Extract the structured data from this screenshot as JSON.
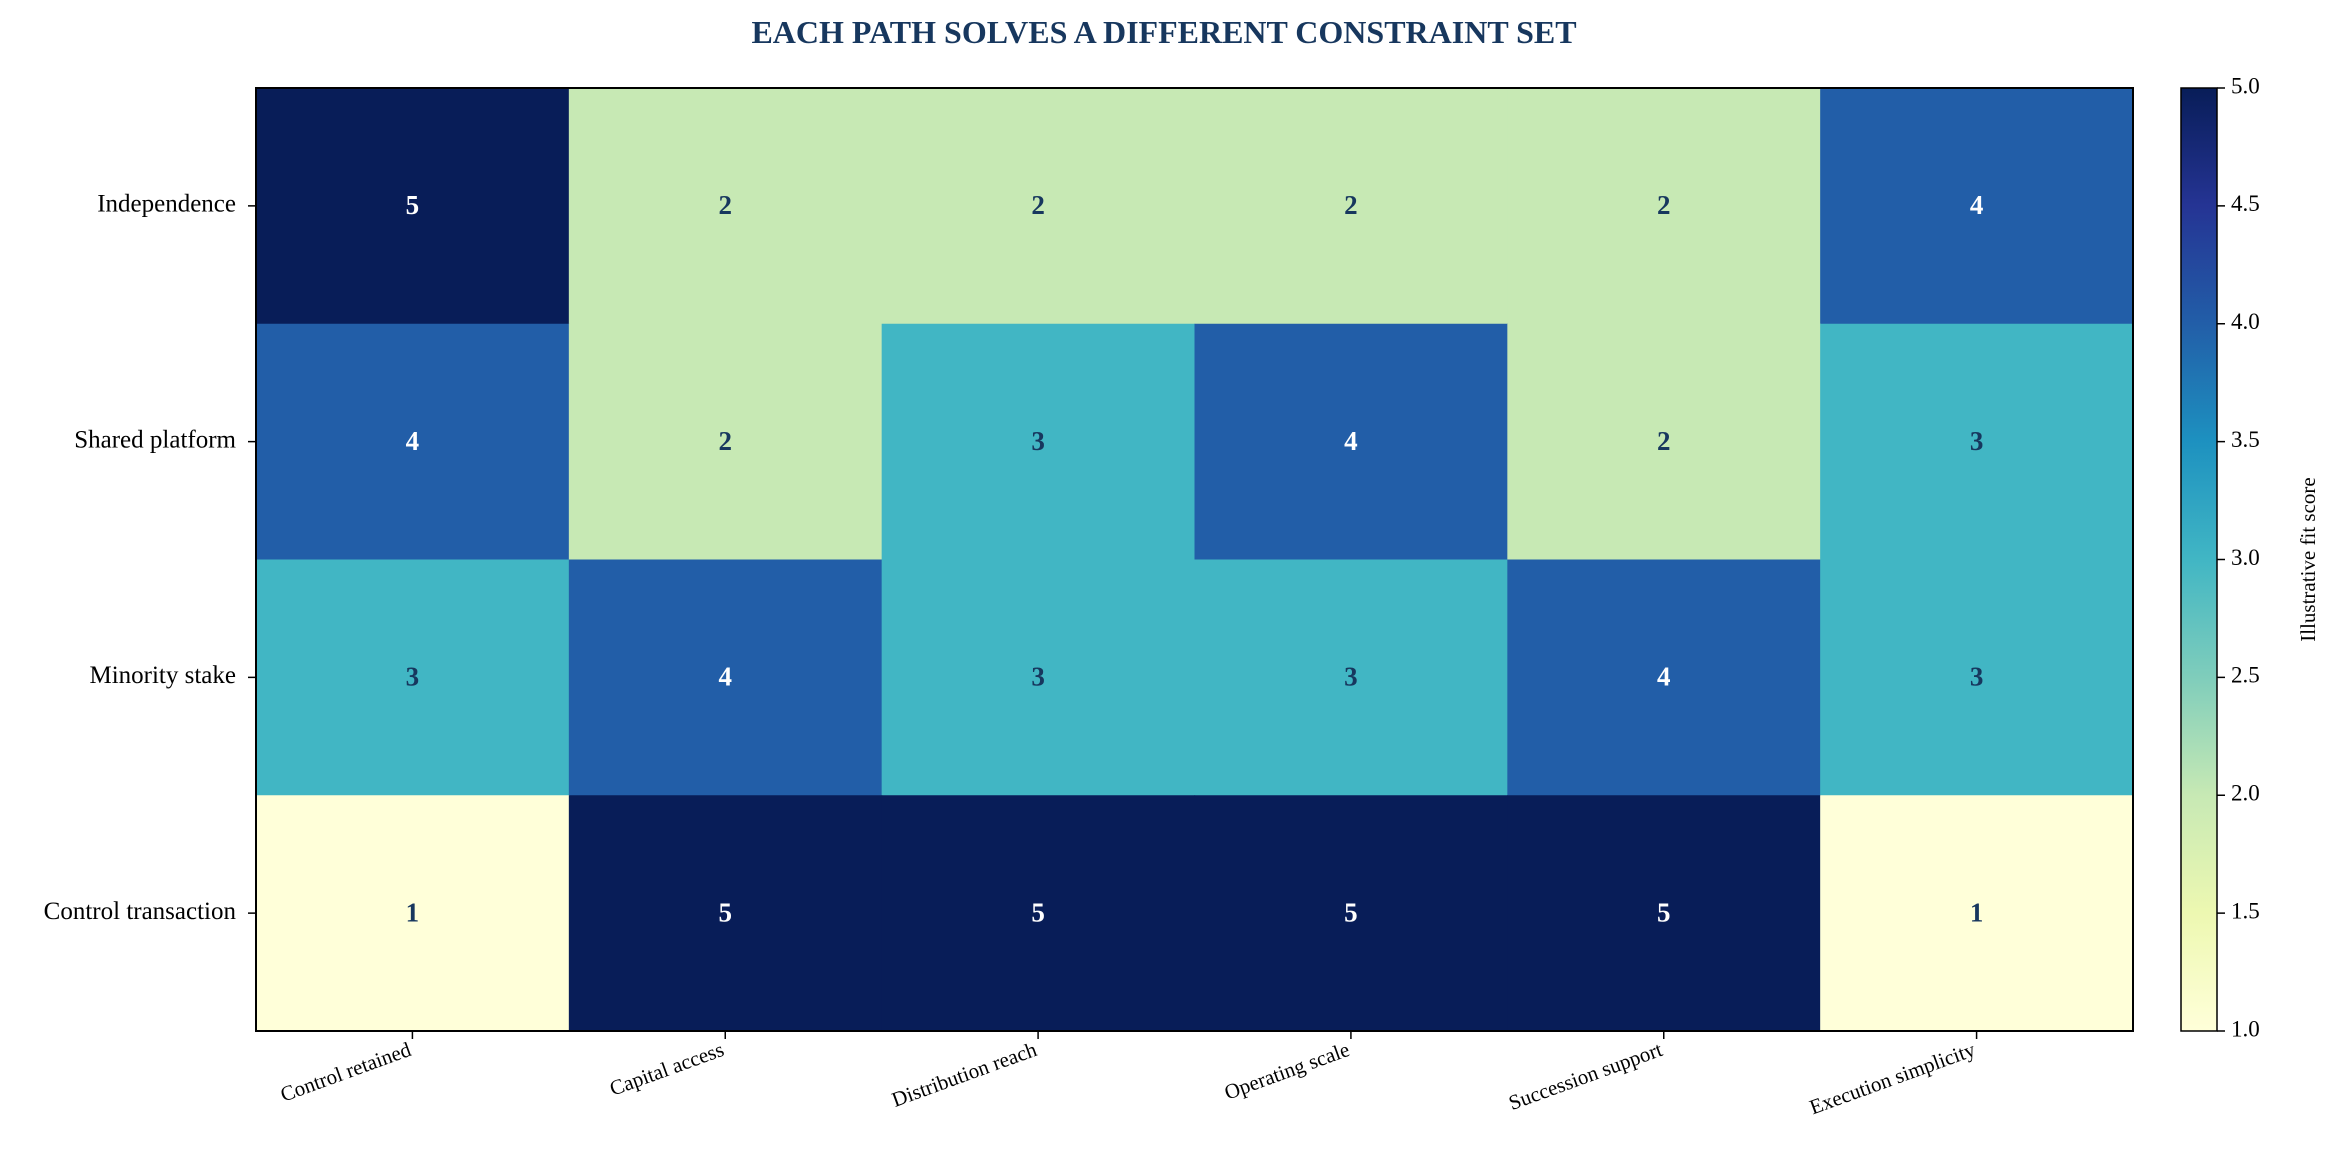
{
  "chart_data": {
    "type": "heatmap",
    "title": "EACH PATH SOLVES A DIFFERENT CONSTRAINT SET",
    "rows": [
      "Independence",
      "Shared platform",
      "Minority stake",
      "Control transaction"
    ],
    "columns": [
      "Control retained",
      "Capital access",
      "Distribution reach",
      "Operating scale",
      "Succession support",
      "Execution simplicity"
    ],
    "values": [
      [
        5,
        2,
        2,
        2,
        2,
        4
      ],
      [
        4,
        2,
        3,
        4,
        2,
        3
      ],
      [
        3,
        4,
        3,
        3,
        4,
        3
      ],
      [
        1,
        5,
        5,
        5,
        5,
        1
      ]
    ],
    "colorbar": {
      "label": "Illustrative fit score",
      "range": [
        1.0,
        5.0
      ],
      "ticks": [
        "1.0",
        "1.5",
        "2.0",
        "2.5",
        "3.0",
        "3.5",
        "4.0",
        "4.5",
        "5.0"
      ],
      "colormap": "YlGnBu"
    },
    "colors": {
      "1": "#ffffd9",
      "2": "#c7e9b4",
      "3": "#41b6c4",
      "4": "#225ea8",
      "5": "#081d58",
      "title": "#17375e",
      "dark_text": "#17375e",
      "light_text": "#ffffff"
    }
  }
}
